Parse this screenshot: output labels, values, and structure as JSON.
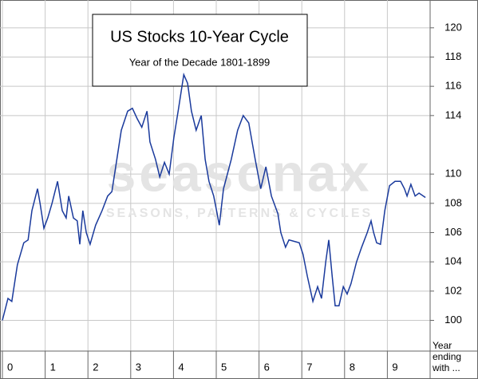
{
  "chart_data": {
    "type": "line",
    "title": "US Stocks 10-Year Cycle",
    "subtitle": "Year of the Decade  1801-1899",
    "watermark": "seasonax",
    "watermark_subtitle": "SEASONS, PATTERNS & CYCLES",
    "x_label": "Year ending with ...",
    "xlim": [
      0,
      10
    ],
    "xticks": [
      0,
      1,
      2,
      3,
      4,
      5,
      6,
      7,
      8,
      9
    ],
    "ylim": [
      97.9,
      121.9
    ],
    "yticks": [
      100,
      102,
      104,
      106,
      108,
      110,
      114,
      116,
      118,
      120
    ],
    "grid": true,
    "series": [
      {
        "name": "US Stocks",
        "color": "#1a3a9c",
        "x": [
          0,
          0.13,
          0.22,
          0.35,
          0.5,
          0.6,
          0.69,
          0.82,
          0.88,
          0.97,
          1.06,
          1.16,
          1.29,
          1.4,
          1.49,
          1.55,
          1.66,
          1.75,
          1.81,
          1.88,
          1.96,
          2.05,
          2.18,
          2.33,
          2.46,
          2.56,
          2.65,
          2.78,
          2.93,
          3.04,
          3.15,
          3.26,
          3.38,
          3.45,
          3.58,
          3.68,
          3.79,
          3.9,
          4.01,
          4.12,
          4.24,
          4.33,
          4.42,
          4.53,
          4.65,
          4.74,
          4.83,
          4.94,
          5.02,
          5.07,
          5.17,
          5.35,
          5.5,
          5.63,
          5.76,
          5.91,
          6.04,
          6.16,
          6.29,
          6.44,
          6.51,
          6.62,
          6.7,
          6.94,
          7.03,
          7.13,
          7.26,
          7.37,
          7.46,
          7.56,
          7.63,
          7.71,
          7.78,
          7.87,
          7.97,
          8.06,
          8.15,
          8.28,
          8.4,
          8.53,
          8.62,
          8.68,
          8.75,
          8.84,
          8.94,
          9.05,
          9.18,
          9.31,
          9.4,
          9.46,
          9.55,
          9.65,
          9.74,
          9.89
        ],
        "values": [
          100,
          101.5,
          101.3,
          103.8,
          105.3,
          105.5,
          107.5,
          109,
          108,
          106.3,
          107,
          108,
          109.5,
          107.5,
          107,
          108.5,
          107,
          106.8,
          105.2,
          107.5,
          106,
          105.2,
          106.5,
          107.5,
          108.5,
          108.8,
          110.5,
          113,
          114.3,
          114.5,
          113.8,
          113.2,
          114.3,
          112.2,
          111,
          109.8,
          110.8,
          110,
          112.5,
          114.5,
          116.8,
          116.2,
          114.3,
          113,
          114,
          111,
          109.5,
          108.5,
          107.3,
          106.5,
          109,
          111,
          113,
          114,
          113.5,
          111,
          109,
          110.5,
          108.5,
          107.3,
          106,
          105,
          105.5,
          105.3,
          104.5,
          103,
          101.3,
          102.3,
          101.5,
          104,
          105.5,
          103,
          101,
          101,
          102.3,
          101.8,
          102.5,
          104,
          105,
          106,
          106.8,
          106,
          105.3,
          105.2,
          107.5,
          109.2,
          109.5,
          109.5,
          109,
          108.5,
          109.3,
          108.5,
          108.7,
          108.4
        ]
      }
    ]
  }
}
